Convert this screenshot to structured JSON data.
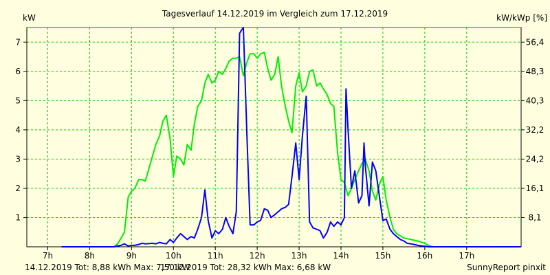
{
  "title": "Tagesverlauf 14.12.2019 im Vergleich zum 17.12.2019",
  "left_unit": "kW",
  "right_unit": "kW/kWp [%]",
  "footer": {
    "series1_summary": "14.12.2019 Tot: 8,88 kWh Max: 7,50 kW",
    "series2_summary": "17.12.2019 Tot: 28,32 kWh Max: 6,68 kW",
    "brand": "SunnyReport pinxit"
  },
  "colors": {
    "background": "#ffffe0",
    "grid": "#00cc00",
    "series1": "#0000ff",
    "series2": "#00ee00"
  },
  "chart_data": {
    "type": "line",
    "xlim": [
      6.5,
      18.3
    ],
    "ylim": [
      0,
      7.5
    ],
    "x_ticks": [
      {
        "value": 7,
        "label": "7h"
      },
      {
        "value": 8,
        "label": "8h"
      },
      {
        "value": 9,
        "label": "9h"
      },
      {
        "value": 10,
        "label": "10h"
      },
      {
        "value": 11,
        "label": "11h"
      },
      {
        "value": 12,
        "label": "12h"
      },
      {
        "value": 13,
        "label": "13h"
      },
      {
        "value": 14,
        "label": "14h"
      },
      {
        "value": 15,
        "label": "15h"
      },
      {
        "value": 16,
        "label": "16h"
      },
      {
        "value": 17,
        "label": "17h"
      }
    ],
    "y_ticks_left": [
      {
        "value": 1,
        "label": "1"
      },
      {
        "value": 2,
        "label": "2"
      },
      {
        "value": 3,
        "label": "3"
      },
      {
        "value": 4,
        "label": "4"
      },
      {
        "value": 5,
        "label": "5"
      },
      {
        "value": 6,
        "label": "6"
      },
      {
        "value": 7,
        "label": "7"
      }
    ],
    "y_ticks_right": [
      {
        "value": 1,
        "label": "8,1"
      },
      {
        "value": 2,
        "label": "16,1"
      },
      {
        "value": 3,
        "label": "24,2"
      },
      {
        "value": 4,
        "label": "32,2"
      },
      {
        "value": 5,
        "label": "40,3"
      },
      {
        "value": 6,
        "label": "48,3"
      },
      {
        "value": 7,
        "label": "56,4"
      }
    ],
    "grid": true,
    "series": [
      {
        "name": "14.12.2019",
        "x": [
          7.33,
          8.58,
          8.75,
          8.83,
          8.92,
          9.0,
          9.08,
          9.17,
          9.25,
          9.33,
          9.5,
          9.58,
          9.67,
          9.75,
          9.83,
          9.92,
          10.0,
          10.08,
          10.17,
          10.25,
          10.33,
          10.42,
          10.5,
          10.58,
          10.67,
          10.75,
          10.83,
          10.92,
          11.0,
          11.08,
          11.17,
          11.25,
          11.33,
          11.42,
          11.5,
          11.58,
          11.62,
          11.67,
          11.75,
          11.83,
          11.92,
          12.0,
          12.08,
          12.17,
          12.25,
          12.33,
          12.42,
          12.5,
          12.58,
          12.67,
          12.75,
          12.83,
          12.92,
          13.0,
          13.08,
          13.17,
          13.25,
          13.33,
          13.42,
          13.5,
          13.58,
          13.67,
          13.75,
          13.83,
          13.92,
          14.0,
          14.08,
          14.12,
          14.17,
          14.25,
          14.33,
          14.42,
          14.5,
          14.55,
          14.58,
          14.67,
          14.75,
          14.83,
          14.92,
          15.0,
          15.08,
          15.17,
          15.25,
          15.33,
          15.42,
          15.5,
          15.58,
          15.67,
          15.75,
          15.83,
          15.92,
          16.0,
          16.08,
          18.3
        ],
        "y": [
          0,
          0,
          0.05,
          0.1,
          0.03,
          0.05,
          0.05,
          0.08,
          0.12,
          0.1,
          0.12,
          0.1,
          0.15,
          0.12,
          0.1,
          0.25,
          0.15,
          0.3,
          0.45,
          0.35,
          0.25,
          0.35,
          0.3,
          0.6,
          1.0,
          1.95,
          0.9,
          0.3,
          0.55,
          0.45,
          0.6,
          1.0,
          0.7,
          0.45,
          1.2,
          7.3,
          7.4,
          7.5,
          4.0,
          0.75,
          0.75,
          0.85,
          0.9,
          1.3,
          1.25,
          1.0,
          1.1,
          1.2,
          1.3,
          1.35,
          1.45,
          2.4,
          3.55,
          2.3,
          3.8,
          5.15,
          0.85,
          0.65,
          0.6,
          0.55,
          0.3,
          0.5,
          0.85,
          0.7,
          0.85,
          0.75,
          1.0,
          5.4,
          4.0,
          2.0,
          2.6,
          1.5,
          1.75,
          3.55,
          2.8,
          1.4,
          2.9,
          2.6,
          1.7,
          0.9,
          0.95,
          0.6,
          0.45,
          0.35,
          0.25,
          0.2,
          0.12,
          0.1,
          0.08,
          0.05,
          0.03,
          0.02,
          0,
          0
        ]
      },
      {
        "name": "17.12.2019",
        "x": [
          7.33,
          8.58,
          8.67,
          8.75,
          8.83,
          8.92,
          9.0,
          9.08,
          9.17,
          9.25,
          9.33,
          9.42,
          9.5,
          9.58,
          9.67,
          9.75,
          9.83,
          9.92,
          10.0,
          10.08,
          10.17,
          10.25,
          10.33,
          10.42,
          10.5,
          10.58,
          10.67,
          10.75,
          10.83,
          10.92,
          11.0,
          11.08,
          11.17,
          11.25,
          11.33,
          11.42,
          11.5,
          11.58,
          11.67,
          11.75,
          11.83,
          11.92,
          12.0,
          12.08,
          12.17,
          12.25,
          12.33,
          12.42,
          12.5,
          12.58,
          12.67,
          12.75,
          12.83,
          12.92,
          13.0,
          13.08,
          13.17,
          13.25,
          13.33,
          13.42,
          13.5,
          13.58,
          13.67,
          13.75,
          13.83,
          13.92,
          14.0,
          14.08,
          14.17,
          14.25,
          14.33,
          14.42,
          14.5,
          14.58,
          14.67,
          14.75,
          14.83,
          14.92,
          15.0,
          15.08,
          15.17,
          15.25,
          15.33,
          15.5,
          15.67,
          15.83,
          16.0,
          16.08,
          16.2,
          18.3
        ],
        "y": [
          0,
          0,
          0.1,
          0.3,
          0.5,
          1.7,
          1.9,
          2.0,
          2.3,
          2.3,
          2.25,
          2.7,
          3.1,
          3.5,
          3.8,
          4.3,
          4.5,
          3.7,
          2.4,
          3.1,
          3.0,
          2.8,
          3.5,
          3.3,
          4.2,
          4.8,
          5.0,
          5.6,
          5.9,
          5.6,
          5.7,
          6.0,
          5.9,
          6.1,
          6.35,
          6.45,
          6.45,
          6.5,
          5.85,
          6.3,
          6.6,
          6.6,
          6.45,
          6.6,
          6.65,
          6.1,
          5.7,
          5.9,
          6.5,
          5.5,
          4.8,
          4.3,
          3.9,
          5.5,
          5.95,
          5.3,
          5.5,
          6.0,
          6.05,
          5.5,
          5.6,
          5.4,
          5.2,
          4.9,
          4.8,
          3.2,
          2.3,
          2.2,
          1.75,
          2.0,
          2.3,
          2.6,
          2.85,
          3.0,
          2.6,
          1.9,
          1.6,
          2.15,
          2.4,
          1.6,
          1.0,
          0.6,
          0.45,
          0.3,
          0.25,
          0.2,
          0.12,
          0.05,
          0,
          0
        ]
      }
    ]
  }
}
